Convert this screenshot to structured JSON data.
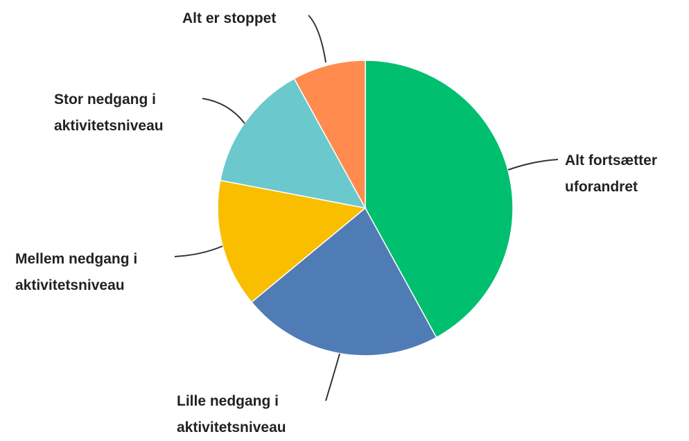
{
  "chart_data": {
    "type": "pie",
    "categories": [
      "Alt fortsætter uforandret",
      "Lille nedgang i aktivitetsniveau",
      "Mellem nedgang i aktivitetsniveau",
      "Stor nedgang i aktivitetsniveau",
      "Alt er stoppet"
    ],
    "values": [
      42,
      22,
      14,
      14,
      8
    ],
    "colors": [
      "#00bf6f",
      "#507cb6",
      "#f9be00",
      "#6bc8cd",
      "#ff8b4f"
    ]
  }
}
